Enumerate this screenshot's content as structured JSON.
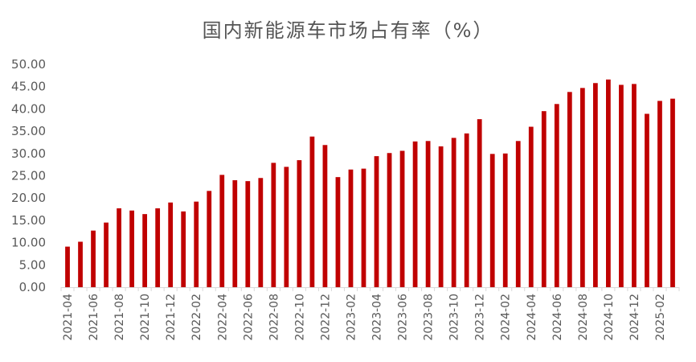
{
  "chart_data": {
    "type": "bar",
    "title": "国内新能源车市场占有率（%）",
    "xlabel": "",
    "ylabel": "",
    "ylim": [
      0,
      50
    ],
    "yticks": [
      "0.00",
      "5.00",
      "10.00",
      "15.00",
      "20.00",
      "25.00",
      "30.00",
      "35.00",
      "40.00",
      "45.00",
      "50.00"
    ],
    "grid": false,
    "color": "#c00000",
    "categories": [
      "2021-04",
      "2021-05",
      "2021-06",
      "2021-07",
      "2021-08",
      "2021-09",
      "2021-10",
      "2021-11",
      "2021-12",
      "2022-01",
      "2022-02",
      "2022-03",
      "2022-04",
      "2022-05",
      "2022-06",
      "2022-07",
      "2022-08",
      "2022-09",
      "2022-10",
      "2022-11",
      "2022-12",
      "2023-01",
      "2023-02",
      "2023-03",
      "2023-04",
      "2023-05",
      "2023-06",
      "2023-07",
      "2023-08",
      "2023-09",
      "2023-10",
      "2023-11",
      "2023-12",
      "2024-01",
      "2024-02",
      "2024-03",
      "2024-04",
      "2024-05",
      "2024-06",
      "2024-07",
      "2024-08",
      "2024-09",
      "2024-10",
      "2024-11",
      "2024-12",
      "2025-01",
      "2025-02",
      "2025-03"
    ],
    "x_tick_labels": [
      "2021-04",
      "2021-06",
      "2021-08",
      "2021-10",
      "2021-12",
      "2022-02",
      "2022-04",
      "2022-06",
      "2022-08",
      "2022-10",
      "2022-12",
      "2023-02",
      "2023-04",
      "2023-06",
      "2023-08",
      "2023-10",
      "2023-12",
      "2024-02",
      "2024-04",
      "2024-06",
      "2024-08",
      "2024-10",
      "2024-12",
      "2025-02"
    ],
    "values": [
      9.1,
      10.2,
      12.7,
      14.5,
      17.7,
      17.2,
      16.4,
      17.7,
      19.0,
      17.0,
      19.2,
      21.6,
      25.2,
      24.0,
      23.8,
      24.5,
      27.9,
      27.0,
      28.5,
      33.8,
      31.9,
      24.7,
      26.4,
      26.6,
      29.4,
      30.1,
      30.6,
      32.7,
      32.8,
      31.6,
      33.5,
      34.5,
      37.7,
      29.9,
      30.0,
      32.8,
      36.0,
      39.5,
      41.1,
      43.8,
      44.7,
      45.8,
      46.6,
      45.4,
      45.6,
      38.9,
      41.8,
      42.3
    ]
  }
}
